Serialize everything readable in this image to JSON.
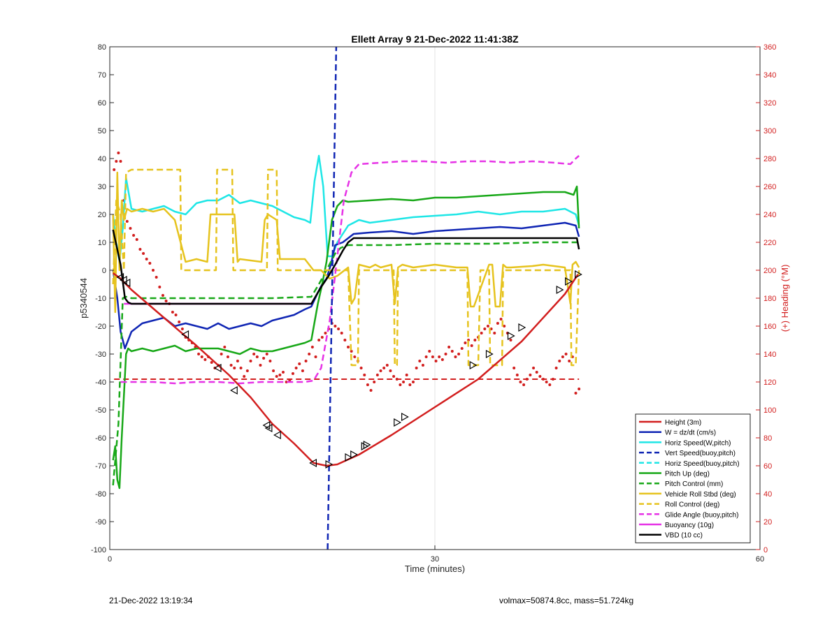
{
  "footer": {
    "left": "21-Dec-2022 13:19:34",
    "right": "volmax=50874.8cc, mass=51.724kg"
  },
  "chart_data": {
    "type": "line",
    "title": "Ellett Array 9 21-Dec-2022 11:41:38Z",
    "xlabel": "Time (minutes)",
    "ylabel_left": "p5340544",
    "ylabel_right": "(+) Heading (°M)",
    "xlim": [
      0,
      60
    ],
    "ylim_left": [
      -100,
      80
    ],
    "ylim_right": [
      0,
      360
    ],
    "x_ticks": [
      0,
      30,
      60
    ],
    "y_ticks_left": [
      80,
      70,
      60,
      50,
      40,
      30,
      20,
      10,
      0,
      -10,
      -20,
      -30,
      -40,
      -50,
      -60,
      -70,
      -80,
      -90,
      -100
    ],
    "y_ticks_right": [
      360,
      340,
      320,
      300,
      280,
      260,
      240,
      220,
      200,
      180,
      160,
      140,
      120,
      100,
      80,
      60,
      40,
      20,
      0
    ],
    "grid": true,
    "legend_position": "bottom-right",
    "colors": {
      "red": "#d21e1e",
      "blue": "#1026b4",
      "cyan": "#1ee6e6",
      "green": "#18a818",
      "yellow": "#e6c31e",
      "magenta": "#e632e6",
      "black": "#000000"
    },
    "series": [
      {
        "name": "Height (3m)",
        "color": "red",
        "style": "solid",
        "axis": "left",
        "x": [
          0.3,
          1.0,
          2.0,
          5.0,
          8.0,
          11.0,
          13.0,
          15.0,
          17.0,
          18.8,
          20.0,
          21.0,
          23.0,
          26.0,
          30.0,
          34.0,
          38.0,
          42.0,
          43.2
        ],
        "y": [
          -1.0,
          -3.0,
          -7.0,
          -17.0,
          -27.0,
          -37.5,
          -45.5,
          -55.0,
          -62.0,
          -69.0,
          -70.0,
          -69.5,
          -66.0,
          -59.0,
          -49.0,
          -39.0,
          -25.5,
          -8.5,
          -1.5
        ]
      },
      {
        "name": "W = dz/dt (cm/s)",
        "color": "blue",
        "style": "solid",
        "axis": "left",
        "x": [
          0.3,
          0.7,
          1.0,
          1.4,
          2.0,
          3.0,
          4.0,
          5.0,
          6.0,
          7.0,
          8.0,
          9.0,
          10.0,
          11.0,
          12.0,
          13.0,
          14.0,
          15.0,
          16.0,
          17.0,
          18.0,
          18.6,
          19.2,
          19.6,
          20.0,
          20.4,
          20.8,
          21.5,
          22.5,
          24.0,
          26.0,
          28.0,
          30.0,
          32.0,
          34.0,
          36.0,
          38.0,
          40.0,
          42.0,
          43.0,
          43.3
        ],
        "y": [
          0.0,
          -10.0,
          -22.0,
          -28.0,
          -22.0,
          -19.0,
          -18.0,
          -17.0,
          -20.0,
          -19.0,
          -20.0,
          -21.0,
          -19.0,
          -21.0,
          -20.0,
          -19.0,
          -20.0,
          -18.0,
          -17.0,
          -16.0,
          -14.0,
          -13.0,
          -8.0,
          -5.0,
          -3.0,
          2.0,
          9.0,
          10.0,
          13.0,
          13.5,
          14.0,
          13.0,
          14.0,
          14.5,
          15.0,
          15.5,
          15.0,
          16.0,
          17.0,
          16.0,
          12.0
        ]
      },
      {
        "name": "Horiz Speed(W,pitch)",
        "color": "cyan",
        "style": "solid",
        "axis": "left",
        "x": [
          0.3,
          0.6,
          0.9,
          1.2,
          1.5,
          2.0,
          3.0,
          4.0,
          5.0,
          6.0,
          7.0,
          8.0,
          9.0,
          10.0,
          11.0,
          12.0,
          13.0,
          14.0,
          15.0,
          16.0,
          17.0,
          18.0,
          18.5,
          18.9,
          19.3,
          19.7,
          20.1,
          20.5,
          21.0,
          22.0,
          23.0,
          24.0,
          26.0,
          28.0,
          30.0,
          32.0,
          34.0,
          36.0,
          38.0,
          40.0,
          42.0,
          43.0,
          43.3
        ],
        "y": [
          20.0,
          10.0,
          3.0,
          15.0,
          33.0,
          22.0,
          21.0,
          22.0,
          23.0,
          21.0,
          20.0,
          24.0,
          25.0,
          25.0,
          27.0,
          24.0,
          25.0,
          24.0,
          23.0,
          21.0,
          19.0,
          18.0,
          17.0,
          32.0,
          41.0,
          30.0,
          5.0,
          5.0,
          10.0,
          16.0,
          18.0,
          17.0,
          18.0,
          19.0,
          19.5,
          20.0,
          21.0,
          20.0,
          21.0,
          21.0,
          22.0,
          20.0,
          16.0
        ]
      },
      {
        "name": "Vert Speed(buoy,pitch)",
        "color": "blue",
        "style": "dashed",
        "axis": "left",
        "x": [
          20.1,
          20.5,
          20.9
        ],
        "y": [
          -100.0,
          -10.0,
          80.0
        ]
      },
      {
        "name": "Horiz Speed(buoy,pitch)",
        "color": "cyan",
        "style": "dashed",
        "axis": "left",
        "x": [],
        "y": []
      },
      {
        "name": "Pitch Up (deg)",
        "color": "green",
        "style": "solid",
        "axis": "left",
        "x": [
          0.3,
          0.5,
          0.7,
          0.9,
          1.1,
          1.3,
          1.5,
          1.7,
          2.0,
          3.0,
          4.0,
          5.0,
          6.0,
          7.0,
          8.0,
          9.0,
          10.0,
          11.0,
          12.0,
          13.0,
          14.0,
          15.0,
          16.0,
          17.0,
          18.0,
          18.6,
          19.2,
          19.6,
          20.0,
          20.5,
          21.0,
          21.5,
          22.0,
          24.0,
          26.0,
          28.0,
          30.0,
          32.0,
          34.0,
          36.0,
          38.0,
          40.0,
          42.0,
          42.8,
          43.1,
          43.3
        ],
        "y": [
          -68.0,
          -63.0,
          -75.0,
          -78.0,
          -60.0,
          -45.0,
          -30.0,
          -28.0,
          -29.0,
          -28.0,
          -29.0,
          -28.0,
          -27.0,
          -29.0,
          -28.0,
          -28.0,
          -28.0,
          -29.0,
          -30.0,
          -28.0,
          -29.0,
          -29.0,
          -28.0,
          -27.0,
          -26.0,
          -25.0,
          -12.0,
          -5.0,
          3.0,
          18.0,
          23.0,
          25.0,
          24.5,
          25.0,
          25.5,
          25.0,
          26.0,
          26.0,
          26.5,
          27.0,
          27.5,
          28.0,
          28.0,
          27.0,
          30.0,
          15.0
        ]
      },
      {
        "name": "Pitch Control (mm)",
        "color": "green",
        "style": "dashed",
        "axis": "left",
        "x": [
          0.3,
          0.8,
          1.2,
          1.5,
          2.0,
          5.0,
          10.0,
          15.0,
          18.6,
          19.3,
          20.0,
          20.8,
          21.3,
          22.0,
          26.0,
          30.0,
          35.0,
          40.0,
          43.3
        ],
        "y": [
          -77.0,
          -55.0,
          -10.0,
          -9.5,
          -10.0,
          -10.0,
          -10.0,
          -10.0,
          -9.5,
          -5.0,
          0.0,
          6.0,
          8.0,
          9.0,
          9.0,
          9.5,
          9.5,
          10.0,
          10.0
        ]
      },
      {
        "name": "Vehicle Roll Stbd (deg)",
        "color": "yellow",
        "style": "solid",
        "axis": "left",
        "x": [
          0.3,
          0.5,
          0.7,
          0.9,
          1.1,
          1.3,
          1.6,
          2.0,
          3.0,
          4.0,
          5.0,
          6.0,
          7.0,
          8.0,
          9.0,
          9.3,
          11.5,
          11.8,
          12.0,
          14.0,
          14.3,
          14.6,
          15.4,
          15.7,
          16.0,
          18.0,
          18.8,
          19.5,
          20.0,
          20.3,
          21.0,
          22.0,
          22.3,
          22.6,
          23.0,
          24.0,
          24.5,
          25.0,
          26.0,
          26.3,
          26.6,
          27.0,
          28.0,
          30.0,
          32.0,
          33.0,
          33.3,
          33.6,
          35.0,
          35.3,
          35.6,
          36.0,
          36.3,
          36.6,
          37.0,
          39.0,
          40.0,
          42.0,
          42.5,
          42.7,
          43.0,
          43.3
        ],
        "y": [
          20.0,
          -15.0,
          35.0,
          0.0,
          25.0,
          18.0,
          22.0,
          21.0,
          22.0,
          21.0,
          22.0,
          18.0,
          3.0,
          4.0,
          3.0,
          20.0,
          20.0,
          3.0,
          4.0,
          3.0,
          18.0,
          20.0,
          18.0,
          4.0,
          4.0,
          4.0,
          0.0,
          0.0,
          -2.0,
          -3.0,
          -2.0,
          1.0,
          -12.0,
          -10.0,
          2.0,
          1.0,
          2.0,
          1.0,
          2.0,
          -12.0,
          1.0,
          2.0,
          1.0,
          2.0,
          1.0,
          1.0,
          -13.0,
          -13.0,
          2.0,
          2.0,
          -13.0,
          -13.0,
          2.0,
          1.0,
          1.0,
          1.5,
          2.0,
          1.0,
          -12.0,
          2.0,
          3.0,
          1.0
        ]
      },
      {
        "name": "Roll Control (deg)",
        "color": "yellow",
        "style": "dashed",
        "axis": "left",
        "x": [
          0.3,
          0.6,
          1.0,
          1.3,
          1.5,
          2.0,
          6.5,
          6.6,
          9.8,
          9.9,
          11.3,
          11.4,
          14.5,
          14.6,
          15.4,
          15.5,
          18.8,
          20.0,
          22.0,
          22.3,
          22.5,
          22.9,
          23.0,
          26.2,
          26.3,
          26.5,
          26.6,
          27.0,
          33.0,
          33.1,
          34.0,
          34.2,
          35.0,
          35.1,
          36.2,
          36.3,
          37.0,
          42.5,
          42.6,
          43.0,
          43.3
        ],
        "y": [
          -5.0,
          25.0,
          20.0,
          0.0,
          35.0,
          36.0,
          36.0,
          0.0,
          0.0,
          36.0,
          36.0,
          0.0,
          0.0,
          36.0,
          36.0,
          0.0,
          0.0,
          0.0,
          0.0,
          -34.0,
          -34.0,
          -34.0,
          0.0,
          0.0,
          -34.0,
          -34.0,
          0.0,
          0.0,
          0.0,
          -34.0,
          -34.0,
          0.0,
          0.0,
          -34.0,
          -34.0,
          0.0,
          0.0,
          0.0,
          -34.0,
          -34.0,
          0.0
        ]
      },
      {
        "name": "Glide Angle (buoy,pitch)",
        "color": "magenta",
        "style": "dashed",
        "axis": "left",
        "x": [
          1.0,
          2.0,
          4.0,
          6.0,
          8.0,
          10.0,
          12.0,
          14.0,
          16.0,
          18.0,
          18.8,
          19.5,
          20.3,
          21.0,
          21.6,
          22.3,
          23.0,
          25.0,
          27.0,
          29.0,
          31.0,
          33.0,
          35.0,
          37.0,
          39.0,
          41.0,
          42.5,
          43.0,
          43.3
        ],
        "y": [
          -40.0,
          -40.0,
          -40.0,
          -40.5,
          -40.0,
          -40.0,
          -40.5,
          -40.0,
          -40.0,
          -40.0,
          -39.5,
          -35.0,
          -18.0,
          5.0,
          25.0,
          35.0,
          38.0,
          38.5,
          39.0,
          39.0,
          38.5,
          39.0,
          39.0,
          38.5,
          39.0,
          38.5,
          38.0,
          40.0,
          41.0
        ]
      },
      {
        "name": "Buoyancy (10g)",
        "color": "magenta",
        "style": "solid",
        "axis": "left",
        "x": [
          1.3,
          18.6
        ],
        "y": [
          -12.0,
          -12.0
        ]
      },
      {
        "name": "VBD (10 cc)",
        "color": "black",
        "style": "solid",
        "axis": "left",
        "x": [
          0.3,
          1.0,
          1.4,
          1.7,
          2.0,
          10.0,
          18.6,
          19.5,
          20.2,
          20.8,
          21.5,
          22.0,
          22.5,
          30.0,
          40.0,
          43.1,
          43.3
        ],
        "y": [
          14.5,
          2.0,
          -10.0,
          -11.5,
          -12.0,
          -12.0,
          -12.0,
          -6.0,
          -2.0,
          2.0,
          7.0,
          10.0,
          11.5,
          11.5,
          11.5,
          11.5,
          7.5
        ]
      }
    ],
    "height_markers": {
      "x": [
        1.0,
        1.3,
        1.6,
        7.0,
        10.0,
        11.5,
        14.5,
        14.7,
        15.5,
        18.8,
        20.2,
        22.0,
        22.5,
        23.5,
        23.7,
        26.5,
        27.2,
        33.5,
        35.0,
        37.0,
        38.0,
        41.5,
        42.3,
        43.2
      ],
      "y": [
        -2.5,
        -3.5,
        -4.5,
        -23.0,
        -35.0,
        -43.0,
        -55.5,
        -56.5,
        -59.0,
        -69.0,
        -69.5,
        -67.0,
        -66.0,
        -63.0,
        -62.5,
        -54.5,
        -52.5,
        -34.0,
        -30.0,
        -23.5,
        -20.5,
        -7.0,
        -4.0,
        -1.5
      ]
    },
    "heading": {
      "name": "Heading",
      "color": "red",
      "axis": "right",
      "target": 122,
      "x": [
        0.4,
        0.6,
        0.8,
        1.0,
        1.3,
        1.6,
        1.9,
        2.2,
        2.5,
        2.8,
        3.1,
        3.4,
        3.7,
        4.0,
        4.3,
        4.6,
        4.9,
        5.2,
        5.5,
        5.8,
        6.1,
        6.4,
        6.7,
        7.0,
        7.3,
        7.6,
        7.9,
        8.2,
        8.5,
        8.8,
        9.1,
        9.4,
        9.7,
        10.0,
        10.3,
        10.6,
        10.9,
        11.2,
        11.5,
        11.8,
        12.1,
        12.4,
        12.7,
        13.0,
        13.3,
        13.6,
        13.9,
        14.2,
        14.5,
        14.8,
        15.1,
        15.4,
        15.7,
        16.0,
        16.3,
        16.6,
        16.9,
        17.2,
        17.5,
        17.8,
        18.1,
        18.4,
        18.7,
        19.0,
        19.3,
        19.6,
        19.9,
        20.2,
        20.5,
        20.8,
        21.1,
        21.4,
        21.7,
        22.0,
        22.3,
        22.6,
        22.9,
        23.2,
        23.5,
        23.8,
        24.1,
        24.4,
        24.7,
        25.0,
        25.3,
        25.6,
        25.9,
        26.2,
        26.5,
        26.8,
        27.1,
        27.4,
        27.7,
        28.0,
        28.3,
        28.6,
        28.9,
        29.2,
        29.5,
        29.8,
        30.1,
        30.4,
        30.7,
        31.0,
        31.3,
        31.6,
        31.9,
        32.2,
        32.5,
        32.8,
        33.1,
        33.4,
        33.7,
        34.0,
        34.3,
        34.6,
        34.9,
        35.2,
        35.5,
        35.8,
        36.1,
        36.4,
        36.7,
        37.0,
        37.3,
        37.6,
        37.9,
        38.2,
        38.5,
        38.8,
        39.1,
        39.4,
        39.7,
        40.0,
        40.3,
        40.6,
        40.9,
        41.2,
        41.5,
        41.8,
        42.1,
        42.4,
        42.7,
        43.0,
        43.3
      ],
      "y": [
        272.0,
        278.0,
        284.0,
        278.0,
        250.0,
        235.0,
        230.0,
        225.0,
        222.0,
        215.0,
        212.0,
        208.0,
        205.0,
        200.0,
        195.0,
        188.0,
        182.0,
        178.0,
        176.0,
        170.0,
        168.0,
        163.0,
        158.0,
        152.0,
        150.0,
        148.0,
        145.0,
        140.0,
        138.0,
        136.0,
        138.0,
        134.0,
        130.0,
        132.0,
        140.0,
        145.0,
        138.0,
        132.0,
        130.0,
        135.0,
        130.0,
        124.0,
        128.0,
        135.0,
        140.0,
        138.0,
        132.0,
        137.0,
        140.0,
        135.0,
        128.0,
        124.0,
        125.0,
        127.0,
        120.0,
        121.0,
        126.0,
        130.0,
        133.0,
        128.0,
        135.0,
        140.0,
        145.0,
        138.0,
        150.0,
        152.0,
        155.0,
        158.0,
        162.0,
        160.0,
        158.0,
        155.0,
        150.0,
        145.0,
        142.0,
        138.0,
        135.0,
        130.0,
        125.0,
        118.0,
        114.0,
        120.0,
        125.0,
        128.0,
        130.0,
        132.0,
        128.0,
        124.0,
        122.0,
        118.0,
        120.0,
        125.0,
        118.0,
        120.0,
        130.0,
        135.0,
        132.0,
        138.0,
        142.0,
        138.0,
        135.0,
        138.0,
        136.0,
        140.0,
        145.0,
        142.0,
        138.0,
        140.0,
        144.0,
        148.0,
        150.0,
        146.0,
        150.0,
        152.0,
        155.0,
        158.0,
        160.0,
        158.0,
        155.0,
        162.0,
        165.0,
        160.0,
        155.0,
        150.0,
        130.0,
        125.0,
        120.0,
        118.0,
        122.0,
        125.0,
        130.0,
        127.0,
        124.0,
        122.0,
        120.0,
        118.0,
        122.0,
        130.0,
        135.0,
        138.0,
        140.0,
        135.0,
        138.0,
        112.0,
        115.0
      ]
    }
  }
}
